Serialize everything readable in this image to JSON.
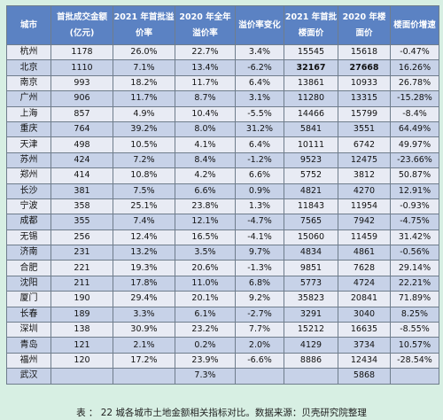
{
  "table": {
    "headers": [
      "城市",
      "首批成交金额(亿元)",
      "2021 年首批溢价率",
      "2020 年全年溢价率",
      "溢价率变化",
      "2021 年首批楼面价",
      "2020 年楼面价",
      "楼面价增速"
    ],
    "rows": [
      [
        "杭州",
        "1178",
        "26.0%",
        "22.7%",
        "3.4%",
        "15545",
        "15618",
        "-0.47%"
      ],
      [
        "北京",
        "1110",
        "7.1%",
        "13.4%",
        "-6.2%",
        "32167",
        "27668",
        "16.26%"
      ],
      [
        "南京",
        "993",
        "18.2%",
        "11.7%",
        "6.4%",
        "13861",
        "10933",
        "26.78%"
      ],
      [
        "广州",
        "906",
        "11.7%",
        "8.7%",
        "3.1%",
        "11280",
        "13315",
        "-15.28%"
      ],
      [
        "上海",
        "857",
        "4.9%",
        "10.4%",
        "-5.5%",
        "14466",
        "15799",
        "-8.4%"
      ],
      [
        "重庆",
        "764",
        "39.2%",
        "8.0%",
        "31.2%",
        "5841",
        "3551",
        "64.49%"
      ],
      [
        "天津",
        "498",
        "10.5%",
        "4.1%",
        "6.4%",
        "10111",
        "6742",
        "49.97%"
      ],
      [
        "苏州",
        "424",
        "7.2%",
        "8.4%",
        "-1.2%",
        "9523",
        "12475",
        "-23.66%"
      ],
      [
        "郑州",
        "414",
        "10.8%",
        "4.2%",
        "6.6%",
        "5752",
        "3812",
        "50.87%"
      ],
      [
        "长沙",
        "381",
        "7.5%",
        "6.6%",
        "0.9%",
        "4821",
        "4270",
        "12.91%"
      ],
      [
        "宁波",
        "358",
        "25.1%",
        "23.8%",
        "1.3%",
        "11843",
        "11954",
        "-0.93%"
      ],
      [
        "成都",
        "355",
        "7.4%",
        "12.1%",
        "-4.7%",
        "7565",
        "7942",
        "-4.75%"
      ],
      [
        "无锡",
        "256",
        "12.4%",
        "16.5%",
        "-4.1%",
        "15060",
        "11459",
        "31.42%"
      ],
      [
        "济南",
        "231",
        "13.2%",
        "3.5%",
        "9.7%",
        "4834",
        "4861",
        "-0.56%"
      ],
      [
        "合肥",
        "221",
        "19.3%",
        "20.6%",
        "-1.3%",
        "9851",
        "7628",
        "29.14%"
      ],
      [
        "沈阳",
        "211",
        "17.8%",
        "11.0%",
        "6.8%",
        "5773",
        "4724",
        "22.21%"
      ],
      [
        "厦门",
        "190",
        "29.4%",
        "20.1%",
        "9.2%",
        "35823",
        "20841",
        "71.89%"
      ],
      [
        "长春",
        "189",
        "3.3%",
        "6.1%",
        "-2.7%",
        "3291",
        "3040",
        "8.25%"
      ],
      [
        "深圳",
        "138",
        "30.9%",
        "23.2%",
        "7.7%",
        "15212",
        "16635",
        "-8.55%"
      ],
      [
        "青岛",
        "121",
        "2.1%",
        "0.2%",
        "2.0%",
        "4129",
        "3734",
        "10.57%"
      ],
      [
        "福州",
        "120",
        "17.2%",
        "23.9%",
        "-6.6%",
        "8886",
        "12434",
        "-28.54%"
      ],
      [
        "武汉",
        "",
        "",
        "7.3%",
        "",
        "",
        "5868",
        ""
      ]
    ],
    "bold_cells": [
      [
        1,
        5
      ],
      [
        1,
        6
      ]
    ]
  },
  "caption": "表 ： 22 城各城市土地金额相关指标对比。数据来源：贝壳研究院整理",
  "colors": {
    "page_bg": "#d7efe3",
    "header_bg": "#5b82c3",
    "row_light": "#e8ebf4",
    "row_dark": "#c7d2e8",
    "border": "#6f7d8c"
  }
}
